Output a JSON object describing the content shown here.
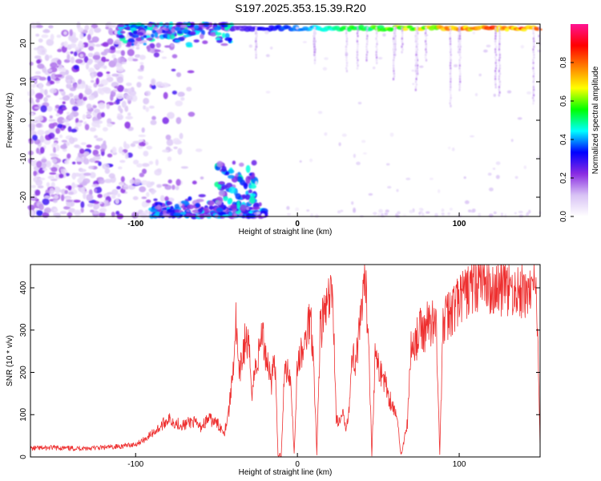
{
  "title": "S197.2025.353.15.39.R20",
  "chart_data": [
    {
      "type": "heatmap",
      "xlabel": "Height of straight line (km)",
      "ylabel": "Frequency (Hz)",
      "xlim": [
        -165,
        150
      ],
      "ylim": [
        -25,
        25
      ],
      "xticks": [
        -100,
        0,
        100
      ],
      "yticks": [
        -20,
        -10,
        0,
        10,
        20
      ],
      "colorbar": {
        "label": "Normalized spectral amplitude",
        "range": [
          0.0,
          1.0
        ],
        "ticks": [
          0.0,
          0.2,
          0.4,
          0.6,
          0.8
        ],
        "tick_labels": [
          "0.0",
          "0.2",
          "0.4",
          "0.6",
          "0.8"
        ],
        "colormap": [
          "#ffffff",
          "#d8c2f5",
          "#8a2be2",
          "#0000ff",
          "#00ffff",
          "#00ff00",
          "#ffff00",
          "#ff8000",
          "#ff0000",
          "#ff1493"
        ]
      },
      "features": [
        {
          "description_values": "strong band near top frequency",
          "x_range": [
            -110,
            150
          ],
          "freq": 24,
          "amplitude": 0.85
        },
        {
          "description_values": "noise region left",
          "x_range": [
            -165,
            -60
          ],
          "freq_range": [
            -25,
            25
          ],
          "amplitude": 0.3
        },
        {
          "description_values": "bottom band",
          "x_range": [
            -90,
            -20
          ],
          "freq": -24,
          "amplitude": 0.5
        }
      ]
    },
    {
      "type": "line",
      "xlabel": "Height of straight line (km)",
      "ylabel": "SNR (10 * v/v)",
      "xlim": [
        -165,
        150
      ],
      "ylim": [
        0,
        455
      ],
      "xticks": [
        -100,
        0,
        100
      ],
      "yticks": [
        0,
        100,
        200,
        300,
        400
      ],
      "grid": false,
      "series": [
        {
          "color": "#ee3030",
          "x": [
            -165,
            -150,
            -140,
            -130,
            -120,
            -110,
            -100,
            -95,
            -90,
            -85,
            -80,
            -75,
            -70,
            -65,
            -60,
            -55,
            -50,
            -45,
            -42,
            -40,
            -38,
            -36,
            -34,
            -32,
            -30,
            -28,
            -26,
            -24,
            -22,
            -20,
            -18,
            -16,
            -14,
            -12,
            -10,
            -8,
            -6,
            -4,
            -2,
            0,
            2,
            4,
            6,
            8,
            10,
            12,
            14,
            16,
            18,
            20,
            22,
            24,
            26,
            28,
            30,
            32,
            34,
            36,
            38,
            40,
            42,
            44,
            46,
            48,
            50,
            52,
            54,
            56,
            58,
            60,
            62,
            64,
            66,
            68,
            70,
            72,
            74,
            76,
            78,
            80,
            82,
            84,
            86,
            88,
            90,
            92,
            94,
            96,
            98,
            100,
            105,
            110,
            115,
            120,
            125,
            130,
            135,
            140,
            145,
            148,
            150
          ],
          "y": [
            20,
            22,
            20,
            21,
            22,
            25,
            30,
            40,
            55,
            70,
            90,
            80,
            75,
            85,
            70,
            90,
            80,
            60,
            120,
            200,
            320,
            180,
            240,
            280,
            250,
            160,
            210,
            240,
            300,
            250,
            220,
            180,
            240,
            5,
            5,
            200,
            210,
            180,
            5,
            220,
            240,
            250,
            300,
            340,
            240,
            5,
            300,
            330,
            350,
            370,
            380,
            90,
            80,
            100,
            70,
            120,
            240,
            230,
            280,
            350,
            410,
            290,
            5,
            240,
            210,
            200,
            180,
            150,
            130,
            110,
            80,
            5,
            40,
            80,
            250,
            270,
            280,
            300,
            290,
            320,
            310,
            330,
            300,
            5,
            310,
            330,
            340,
            350,
            360,
            370,
            390,
            410,
            420,
            400,
            405,
            395,
            390,
            385,
            400,
            380,
            20
          ]
        }
      ]
    }
  ]
}
